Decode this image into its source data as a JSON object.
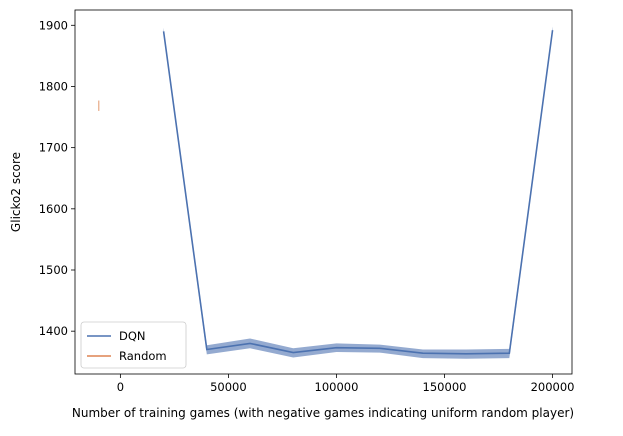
{
  "chart_data": {
    "type": "line",
    "title": "",
    "xlabel": "Number of training games (with negative games indicating uniform random player)",
    "ylabel": "Glicko2 score",
    "xlim": [
      -21000,
      209000
    ],
    "ylim": [
      1330,
      1925
    ],
    "x_ticks": [
      0,
      50000,
      100000,
      150000,
      200000
    ],
    "y_ticks": [
      1400,
      1500,
      1600,
      1700,
      1800,
      1900
    ],
    "grid": false,
    "legend_position": "lower-left",
    "series": [
      {
        "name": "DQN",
        "color": "#4c72b0",
        "band_color": "#4c72b0",
        "x": [
          20000,
          40000,
          60000,
          80000,
          100000,
          120000,
          140000,
          160000,
          180000,
          200000
        ],
        "y": [
          1890,
          1370,
          1380,
          1365,
          1373,
          1372,
          1364,
          1363,
          1364,
          1892
        ],
        "y_low": [
          1885,
          1362,
          1372,
          1357,
          1366,
          1365,
          1356,
          1355,
          1356,
          1887
        ],
        "y_high": [
          1896,
          1377,
          1388,
          1372,
          1380,
          1378,
          1370,
          1370,
          1371,
          1898
        ]
      },
      {
        "name": "Random",
        "color": "#dd8452",
        "band_color": "#dd8452",
        "x": [
          -10000
        ],
        "y": [
          1768
        ],
        "y_low": [
          1760
        ],
        "y_high": [
          1777
        ]
      }
    ]
  }
}
